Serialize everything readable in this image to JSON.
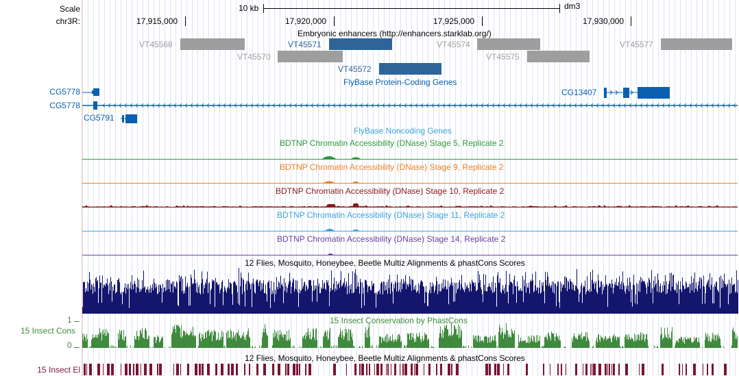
{
  "ruler": {
    "scale_label": "Scale",
    "chrom_label": "chr3R:",
    "scale_bar_label": "10 kb",
    "assembly": "dm3",
    "positions": [
      "17,915,000",
      "17,920,000",
      "17,925,000",
      "17,930,000"
    ]
  },
  "tracks": {
    "enhancers": {
      "title": "Embryonic enhancers (http://enhancers.starklab.org/)",
      "items": [
        {
          "name": "VT45568",
          "active": false
        },
        {
          "name": "VT45570",
          "active": false
        },
        {
          "name": "VT45571",
          "active": true
        },
        {
          "name": "VT45572",
          "active": true
        },
        {
          "name": "VT45574",
          "active": false
        },
        {
          "name": "VT45575",
          "active": false
        },
        {
          "name": "VT45577",
          "active": false
        }
      ]
    },
    "protein_genes": {
      "title": "FlyBase Protein-Coding Genes",
      "side_labels": [
        "CG5778",
        "CG5778"
      ],
      "genes": [
        "CG5791",
        "CG13407"
      ]
    },
    "noncoding": {
      "title": "FlyBase Noncoding Genes"
    },
    "dnase": [
      {
        "title": "BDTNP Chromatin Accessibility (DNase) Stage 5, Replicate 2",
        "color": "#2e9b3a"
      },
      {
        "title": "BDTNP Chromatin Accessibility (DNase) Stage 9, Replicate 2",
        "color": "#f07f1e"
      },
      {
        "title": "BDTNP Chromatin Accessibility (DNase) Stage 10, Replicate 2",
        "color": "#8b1a1a"
      },
      {
        "title": "BDTNP Chromatin Accessibility (DNase) Stage 11, Replicate 2",
        "color": "#3aa3dc"
      },
      {
        "title": "BDTNP Chromatin Accessibility (DNase) Stage 14, Replicate 2",
        "color": "#6b3fa0"
      }
    ],
    "multiz": {
      "title": "12 Flies, Mosquito, Honeybee, Beetle Multiz Alignments & phastCons Scores"
    },
    "cons": {
      "title": "15 Insect Conservation by PhastCons",
      "side_label": "15 Insect Cons",
      "axis_max": "1",
      "axis_min": "0"
    },
    "elements": {
      "title": "12 Flies, Mosquito, Honeybee, Beetle Multiz Alignments & phastCons Scores",
      "side_label": "15 Insect El"
    }
  },
  "colors": {
    "gene": "#0b5fb0",
    "enh_active": "#2f6498",
    "enh_inactive": "#9e9e9e",
    "multiz": "#14166e",
    "cons": "#3f8a3c",
    "elements": "#7a1430"
  }
}
